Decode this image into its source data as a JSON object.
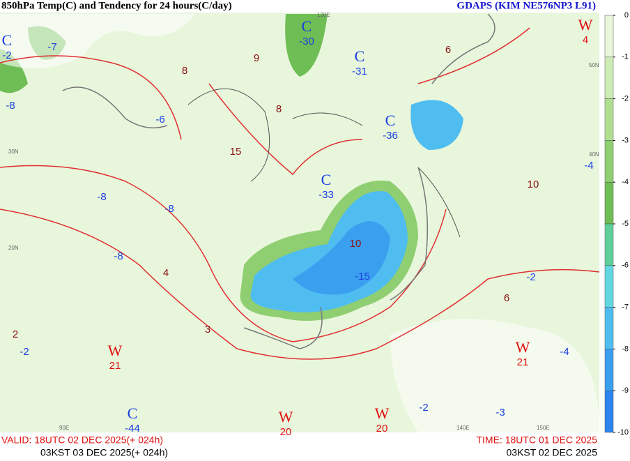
{
  "header": {
    "title": "850hPa Temp(C) and Tendency for 24 hours(C/day)",
    "model": "GDAPS (KIM NE576NP3 L91)"
  },
  "footer": {
    "valid": "VALID: 18UTC 02 DEC 2025(+ 024h)",
    "valid_kst": "03KST 03 DEC 2025(+ 024h)",
    "time": "TIME: 18UTC 01 DEC 2025",
    "time_kst": "03KST 02 DEC 2025"
  },
  "legend": {
    "ticks": [
      0,
      -1,
      -2,
      -3,
      -4,
      -5,
      -6,
      -7,
      -8,
      -9,
      -10
    ],
    "colors": [
      "#e8f6dc",
      "#cdebb4",
      "#b0df92",
      "#8fce71",
      "#6fbd55",
      "#5fcf9a",
      "#62d7e2",
      "#4fbdf0",
      "#3b9ff0",
      "#2c84ee",
      "#1c6ae8"
    ]
  },
  "map": {
    "centers": [
      {
        "symbol": "C",
        "value": -30
      },
      {
        "symbol": "C",
        "value": -31
      },
      {
        "symbol": "C",
        "value": -36
      },
      {
        "symbol": "C",
        "value": -33
      },
      {
        "symbol": "C",
        "value": -2
      },
      {
        "symbol": "C",
        "value": -44
      },
      {
        "symbol": "W",
        "value": 21
      },
      {
        "symbol": "W",
        "value": 20
      },
      {
        "symbol": "W",
        "value": 21
      },
      {
        "symbol": "W",
        "value": 4
      },
      {
        "symbol": "W",
        "value": 20
      }
    ],
    "labels": [
      -7,
      -8,
      -6,
      -8,
      -8,
      -8,
      -15,
      -2,
      -4,
      -4,
      -3,
      -2,
      -2,
      10,
      15,
      9,
      8,
      6,
      8,
      10,
      4,
      3,
      6,
      2
    ],
    "geo": [
      "90E",
      "120E",
      "140E",
      "150E",
      "30N",
      "20N",
      "40N",
      "50N"
    ]
  }
}
